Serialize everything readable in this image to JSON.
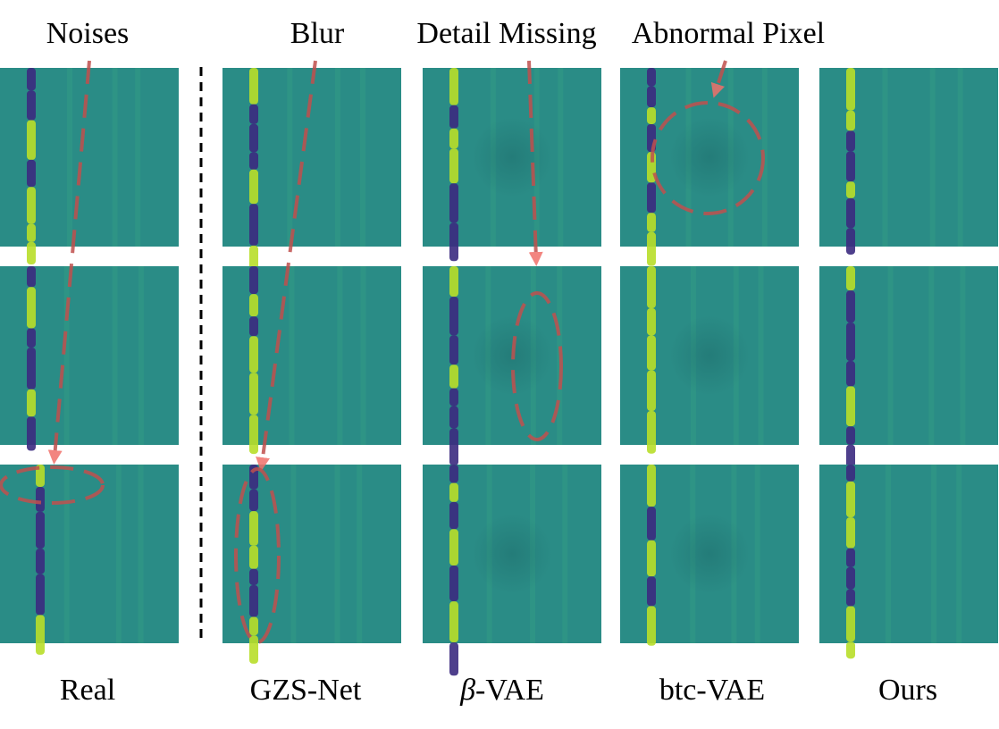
{
  "annotations": [
    "Noises",
    "Blur",
    "Detail Missing",
    "Abnormal Pixel"
  ],
  "columns": [
    {
      "label": "Real"
    },
    {
      "label": "GZS-Net"
    },
    {
      "symbol": "β",
      "label": "-VAE"
    },
    {
      "label": "btc-VAE"
    },
    {
      "label": "Ours"
    }
  ]
}
